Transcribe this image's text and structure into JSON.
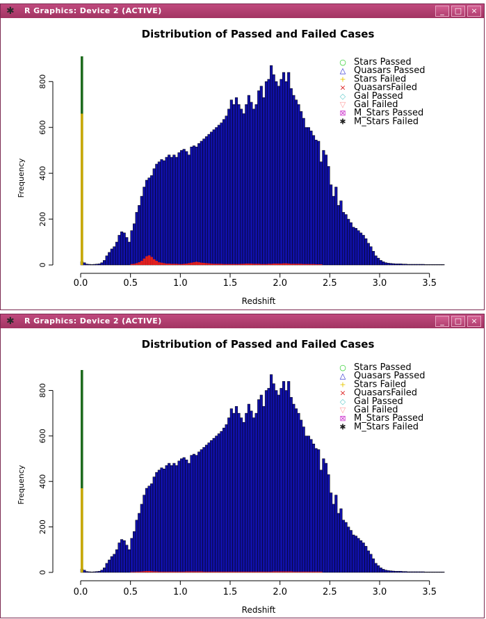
{
  "windows": [
    {
      "title": "R Graphics: Device 2 (ACTIVE)",
      "buttons": {
        "minimize": "_",
        "maximize": "□",
        "close": "×"
      },
      "chart_data": {
        "type": "bar",
        "title": "Distribution of Passed and Failed Cases",
        "xlabel": "Redshift",
        "ylabel": "Frequency",
        "xlim": [
          0.0,
          3.6
        ],
        "ylim": [
          0,
          910
        ],
        "x_ticks": [
          "0.0",
          "0.5",
          "1.0",
          "1.5",
          "2.0",
          "2.5",
          "3.0",
          "3.5"
        ],
        "y_ticks": [
          "0",
          "200",
          "400",
          "600",
          "800"
        ],
        "grid": false,
        "legend_position": "top-right",
        "bin_width": 0.025,
        "legend": [
          {
            "label": "Stars Passed",
            "symbol": "○",
            "color": "#22cc22"
          },
          {
            "label": "Quasars Passed",
            "symbol": "△",
            "color": "#1a1acc"
          },
          {
            "label": "Stars Failed",
            "symbol": "+",
            "color": "#e6c800"
          },
          {
            "label": "QuasarsFailed",
            "symbol": "×",
            "color": "#dd2222"
          },
          {
            "label": "Gal Passed",
            "symbol": "◇",
            "color": "#66cccc"
          },
          {
            "label": "Gal Failed",
            "symbol": "▽",
            "color": "#ff9999"
          },
          {
            "label": "M_Stars Passed",
            "symbol": "⊠",
            "color": "#cc33cc"
          },
          {
            "label": "M_Stars Failed",
            "symbol": "✱",
            "color": "#222222"
          }
        ],
        "series": [
          {
            "name": "Quasars Passed",
            "color": "#1010a8",
            "stroke": "#000000",
            "x_start": 0.0,
            "values": [
              15,
              10,
              4,
              3,
              2,
              3,
              4,
              5,
              10,
              20,
              40,
              55,
              70,
              80,
              100,
              130,
              145,
              140,
              120,
              100,
              150,
              180,
              230,
              260,
              300,
              340,
              370,
              380,
              390,
              420,
              440,
              450,
              460,
              455,
              470,
              480,
              470,
              480,
              470,
              490,
              500,
              505,
              495,
              480,
              515,
              520,
              515,
              530,
              540,
              550,
              560,
              570,
              580,
              590,
              600,
              610,
              620,
              635,
              650,
              680,
              720,
              700,
              730,
              700,
              680,
              660,
              700,
              740,
              710,
              680,
              700,
              760,
              780,
              730,
              800,
              810,
              870,
              830,
              800,
              780,
              810,
              840,
              800,
              840,
              770,
              740,
              720,
              700,
              670,
              640,
              600,
              600,
              585,
              565,
              545,
              540,
              450,
              500,
              480,
              430,
              350,
              300,
              340,
              260,
              280,
              230,
              220,
              200,
              185,
              165,
              160,
              150,
              140,
              130,
              115,
              95,
              80,
              60,
              40,
              30,
              20,
              14,
              10,
              8,
              7,
              6,
              5,
              5,
              5,
              4,
              4,
              3,
              3,
              3,
              3,
              3,
              3,
              3,
              2,
              2,
              2,
              2,
              2,
              2,
              2,
              2
            ]
          },
          {
            "name": "QuasarsFailed",
            "color": "#e02020",
            "x_start": 0.5,
            "values": [
              4,
              5,
              8,
              12,
              18,
              28,
              38,
              42,
              35,
              25,
              18,
              12,
              10,
              8,
              6,
              6,
              5,
              5,
              5,
              4,
              4,
              5,
              6,
              8,
              10,
              12,
              14,
              12,
              10,
              9,
              8,
              7,
              6,
              5,
              5,
              5,
              5,
              4,
              4,
              4,
              4,
              4,
              4,
              4,
              5,
              5,
              6,
              6,
              6,
              5,
              5,
              5,
              4,
              4,
              4,
              5,
              5,
              6,
              6,
              6,
              6,
              7,
              7,
              6,
              5,
              5,
              5,
              5,
              5,
              4,
              4,
              4,
              4,
              4,
              3,
              3,
              3
            ]
          },
          {
            "name": "Stars Passed",
            "color": "#1e6b1e",
            "x_start": 0.0,
            "values": [
              910
            ]
          },
          {
            "name": "Stars Failed",
            "color": "#c8a800",
            "x_start": 0.0,
            "values": [
              660
            ]
          }
        ]
      }
    },
    {
      "title": "R Graphics: Device 2 (ACTIVE)",
      "buttons": {
        "minimize": "_",
        "maximize": "□",
        "close": "×"
      },
      "chart_data": {
        "type": "bar",
        "title": "Distribution of Passed and Failed Cases",
        "xlabel": "Redshift",
        "ylabel": "Frequency",
        "xlim": [
          0.0,
          3.6
        ],
        "ylim": [
          0,
          890
        ],
        "x_ticks": [
          "0.0",
          "0.5",
          "1.0",
          "1.5",
          "2.0",
          "2.5",
          "3.0",
          "3.5"
        ],
        "y_ticks": [
          "0",
          "200",
          "400",
          "600",
          "800"
        ],
        "grid": false,
        "legend_position": "top-right",
        "bin_width": 0.025,
        "legend": [
          {
            "label": "Stars Passed",
            "symbol": "○",
            "color": "#22cc22"
          },
          {
            "label": "Quasars Passed",
            "symbol": "△",
            "color": "#1a1acc"
          },
          {
            "label": "Stars Failed",
            "symbol": "+",
            "color": "#e6c800"
          },
          {
            "label": "QuasarsFailed",
            "symbol": "×",
            "color": "#dd2222"
          },
          {
            "label": "Gal Passed",
            "symbol": "◇",
            "color": "#66cccc"
          },
          {
            "label": "Gal Failed",
            "symbol": "▽",
            "color": "#ff9999"
          },
          {
            "label": "M_Stars Passed",
            "symbol": "⊠",
            "color": "#cc33cc"
          },
          {
            "label": "M_Stars Failed",
            "symbol": "✱",
            "color": "#222222"
          }
        ],
        "series": [
          {
            "name": "Quasars Passed",
            "color": "#1010a8",
            "stroke": "#000000",
            "x_start": 0.0,
            "values": [
              15,
              10,
              4,
              3,
              2,
              3,
              4,
              5,
              10,
              20,
              40,
              55,
              70,
              80,
              100,
              130,
              145,
              140,
              120,
              100,
              150,
              180,
              230,
              260,
              300,
              340,
              370,
              380,
              390,
              420,
              440,
              450,
              460,
              455,
              470,
              480,
              470,
              480,
              470,
              490,
              500,
              505,
              495,
              480,
              515,
              520,
              515,
              530,
              540,
              550,
              560,
              570,
              580,
              590,
              600,
              610,
              620,
              635,
              650,
              680,
              720,
              700,
              730,
              700,
              680,
              660,
              700,
              740,
              710,
              680,
              700,
              760,
              780,
              730,
              800,
              810,
              870,
              830,
              800,
              780,
              810,
              840,
              800,
              840,
              770,
              740,
              720,
              700,
              670,
              640,
              600,
              600,
              585,
              565,
              545,
              540,
              450,
              500,
              480,
              430,
              350,
              300,
              340,
              260,
              280,
              230,
              220,
              200,
              185,
              165,
              160,
              150,
              140,
              130,
              115,
              95,
              80,
              60,
              40,
              30,
              20,
              14,
              10,
              8,
              7,
              6,
              5,
              5,
              5,
              4,
              4,
              3,
              3,
              3,
              3,
              3,
              3,
              3,
              2,
              2,
              2,
              2,
              2,
              2,
              2,
              2
            ]
          },
          {
            "name": "QuasarsFailed",
            "color": "#e02020",
            "x_start": 0.5,
            "values": [
              2,
              2,
              3,
              3,
              4,
              5,
              6,
              6,
              5,
              4,
              4,
              3,
              3,
              3,
              3,
              3,
              3,
              3,
              3,
              3,
              3,
              3,
              4,
              4,
              4,
              4,
              4,
              4,
              4,
              3,
              3,
              3,
              3,
              3,
              3,
              3,
              3,
              3,
              3,
              3,
              3,
              3,
              3,
              3,
              3,
              3,
              3,
              3,
              3,
              3,
              3,
              3,
              3,
              3,
              3,
              3,
              3,
              4,
              4,
              4,
              4,
              4,
              4,
              4,
              4,
              3,
              3,
              3,
              3,
              3,
              3,
              3,
              3,
              3,
              3,
              3,
              3
            ]
          },
          {
            "name": "Stars Passed",
            "color": "#1e6b1e",
            "x_start": 0.0,
            "values": [
              890
            ]
          },
          {
            "name": "Stars Failed",
            "color": "#c8a800",
            "x_start": 0.0,
            "values": [
              370
            ]
          }
        ]
      }
    }
  ]
}
